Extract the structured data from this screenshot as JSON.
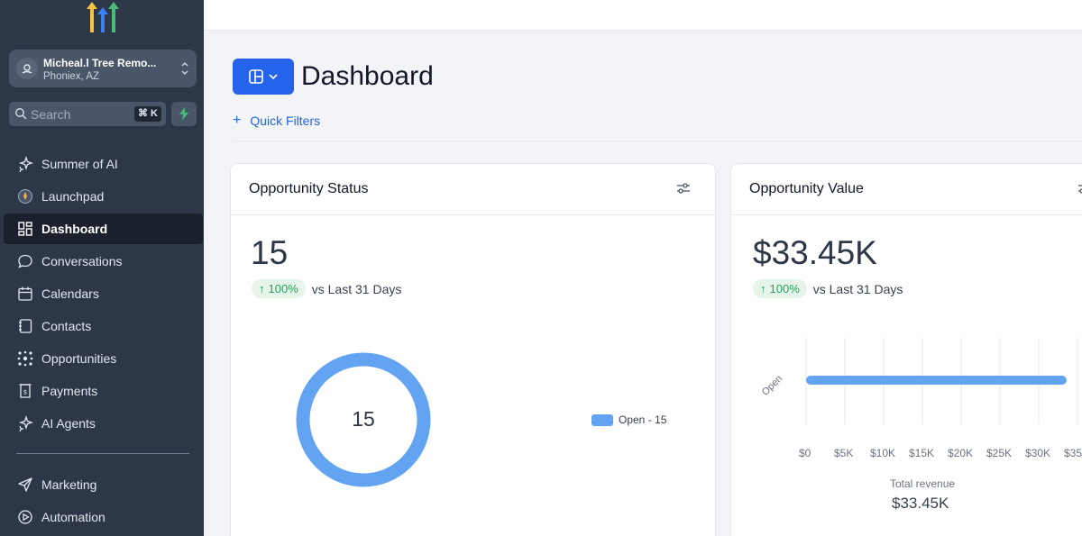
{
  "sidebar": {
    "location": {
      "name": "Micheal.l Tree Remo...",
      "city": "Phoniex, AZ"
    },
    "search": {
      "placeholder": "Search",
      "shortcut": "⌘ K"
    },
    "items": [
      {
        "label": "Summer of AI",
        "icon": "sparkle-icon"
      },
      {
        "label": "Launchpad",
        "icon": "rocket-icon"
      },
      {
        "label": "Dashboard",
        "icon": "grid-icon",
        "active": true
      },
      {
        "label": "Conversations",
        "icon": "chat-icon"
      },
      {
        "label": "Calendars",
        "icon": "calendar-icon"
      },
      {
        "label": "Contacts",
        "icon": "contact-card-icon"
      },
      {
        "label": "Opportunities",
        "icon": "pipeline-icon"
      },
      {
        "label": "Payments",
        "icon": "receipt-icon"
      },
      {
        "label": "AI Agents",
        "icon": "sparkle-icon"
      },
      {
        "label": "Marketing",
        "icon": "send-icon"
      },
      {
        "label": "Automation",
        "icon": "play-circle-icon"
      }
    ]
  },
  "header": {
    "title": "Dashboard",
    "quick_filters": "Quick Filters"
  },
  "cards": {
    "status": {
      "title": "Opportunity Status",
      "value": "15",
      "trend": "100%",
      "trend_text": "vs Last 31 Days",
      "donut_center": "15",
      "legend": "Open - 15"
    },
    "value": {
      "title": "Opportunity Value",
      "value": "$33.45K",
      "trend": "100%",
      "trend_text": "vs Last 31 Days",
      "category": "Open",
      "ticks": [
        "$0",
        "$5K",
        "$10K",
        "$15K",
        "$20K",
        "$25K",
        "$30K",
        "$35"
      ],
      "total_label": "Total revenue",
      "total_value": "$33.45K"
    }
  },
  "colors": {
    "accent": "#2563eb",
    "series": "#63a4f2",
    "sidebar": "#2d3748",
    "positive": "#22a35b"
  }
}
